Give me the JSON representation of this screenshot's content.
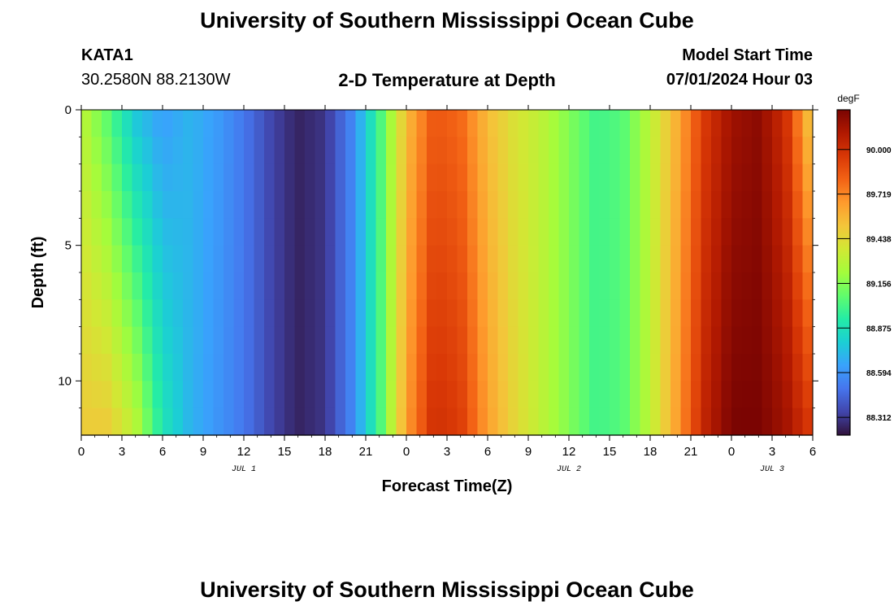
{
  "header": {
    "title": "University of Southern Mississippi Ocean Cube",
    "station": "KATA1",
    "coords": "30.2580N  88.2130W",
    "subtitle": "2-D Temperature at Depth",
    "model_label": "Model Start Time",
    "model_time": "07/01/2024 Hour 03"
  },
  "footer": {
    "title": "University of Southern Mississippi Ocean Cube"
  },
  "chart_data": {
    "type": "heatmap",
    "title": "2-D Temperature at Depth",
    "xlabel": "Forecast Time(Z)",
    "ylabel": "Depth (ft)",
    "xlim": [
      0,
      54
    ],
    "ylim": [
      0,
      12
    ],
    "x_tick_labels": [
      "0",
      "3",
      "6",
      "9",
      "12",
      "15",
      "18",
      "21",
      "0",
      "3",
      "6",
      "9",
      "12",
      "15",
      "18",
      "21",
      "0",
      "3",
      "6"
    ],
    "y_tick_labels": [
      "0",
      "5",
      "10"
    ],
    "y_tick_values": [
      0,
      5,
      10
    ],
    "date_labels": [
      {
        "label": "JUL 1",
        "x": 12
      },
      {
        "label": "JUL 2",
        "x": 36
      },
      {
        "label": "JUL 3",
        "x": 51
      }
    ],
    "colorbar": {
      "unit": "degF",
      "min": 88.2,
      "max": 90.25,
      "ticks": [
        "90.000",
        "89.719",
        "89.438",
        "89.156",
        "88.875",
        "88.594",
        "88.312"
      ],
      "tick_values": [
        90.0,
        89.719,
        89.438,
        89.156,
        88.875,
        88.594,
        88.312
      ],
      "colors": [
        "#30123b",
        "#4145ab",
        "#4675ed",
        "#39a2fc",
        "#1bcfd4",
        "#24eca6",
        "#61fc6c",
        "#a4fc3b",
        "#d1e834",
        "#f3c63a",
        "#fe9b2d",
        "#f36315",
        "#d93806",
        "#b11901",
        "#7a0402"
      ]
    },
    "profile_hours": [
      0,
      2,
      4,
      6,
      8,
      10,
      12,
      14,
      16,
      18,
      20,
      22,
      24,
      26,
      28,
      30,
      32,
      34,
      36,
      38,
      40,
      42,
      44,
      46,
      48,
      50,
      52,
      54
    ],
    "profile_surface_degF": [
      89.3,
      89.05,
      88.75,
      88.62,
      88.7,
      88.62,
      88.5,
      88.35,
      88.25,
      88.3,
      88.55,
      89.0,
      89.55,
      89.85,
      89.8,
      89.55,
      89.4,
      89.3,
      89.15,
      89.0,
      89.05,
      89.3,
      89.6,
      89.95,
      90.15,
      90.2,
      90.0,
      89.45
    ],
    "profile_bottom_degF": [
      89.5,
      89.5,
      89.3,
      88.9,
      88.7,
      88.6,
      88.5,
      88.35,
      88.25,
      88.3,
      88.55,
      89.0,
      89.65,
      90.0,
      89.95,
      89.65,
      89.45,
      89.3,
      89.15,
      89.0,
      89.05,
      89.3,
      89.65,
      90.05,
      90.25,
      90.25,
      90.15,
      89.95
    ],
    "grid": false,
    "legend": "colorbar-right"
  }
}
